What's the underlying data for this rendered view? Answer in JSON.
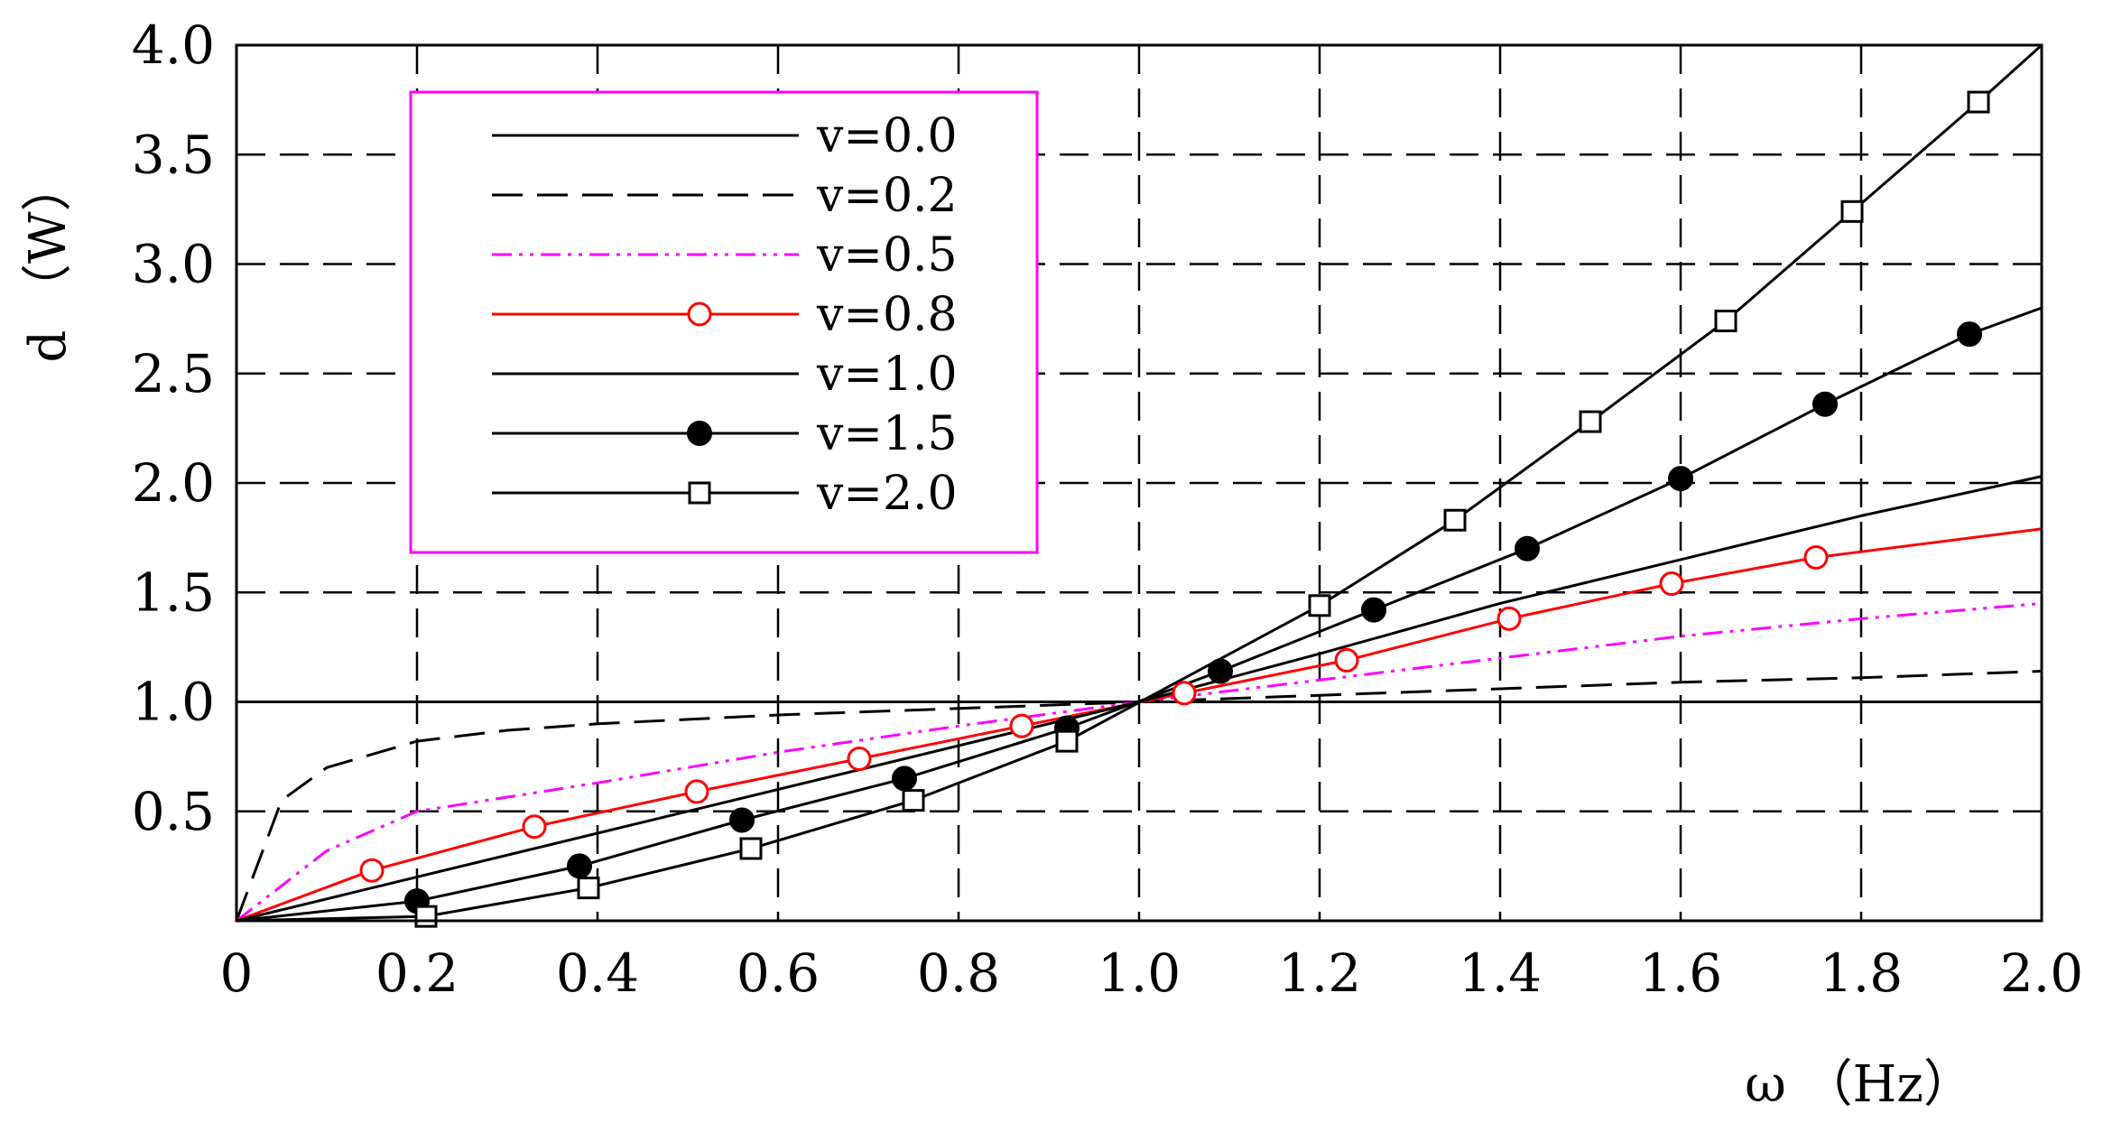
{
  "chart_data": {
    "type": "line",
    "xlabel": "ω （Hz）",
    "ylabel": "d （W）",
    "xlim": [
      0,
      2.0
    ],
    "ylim": [
      0,
      4.0
    ],
    "x_ticks": [
      "0",
      "0.2",
      "0.4",
      "0.6",
      "0.8",
      "1.0",
      "1.2",
      "1.4",
      "1.6",
      "1.8",
      "2.0"
    ],
    "y_ticks": [
      "0.5",
      "1.0",
      "1.5",
      "2.0",
      "2.5",
      "3.0",
      "3.5",
      "4.0"
    ],
    "grid": true,
    "legend_position": "top-left",
    "reference_line": {
      "y": 1.0,
      "color": "#ff0000"
    },
    "series": [
      {
        "name": "v=0.0",
        "color": "#000000",
        "style": "solid",
        "marker": "none",
        "x": [
          0,
          2.0
        ],
        "y": [
          1.0,
          1.0
        ]
      },
      {
        "name": "v=0.2",
        "color": "#000000",
        "style": "dash",
        "marker": "none",
        "x": [
          0,
          0.05,
          0.1,
          0.2,
          0.3,
          0.4,
          0.6,
          0.8,
          1.0,
          1.2,
          1.4,
          1.6,
          1.8,
          2.0
        ],
        "y": [
          0,
          0.55,
          0.7,
          0.82,
          0.87,
          0.9,
          0.94,
          0.97,
          1.0,
          1.03,
          1.06,
          1.09,
          1.11,
          1.14
        ]
      },
      {
        "name": "v=0.5",
        "color": "#ff00ff",
        "style": "dashdot",
        "marker": "none",
        "x": [
          0,
          0.1,
          0.2,
          0.4,
          0.6,
          0.8,
          1.0,
          1.2,
          1.4,
          1.6,
          1.8,
          2.0
        ],
        "y": [
          0,
          0.32,
          0.5,
          0.63,
          0.77,
          0.89,
          1.0,
          1.1,
          1.2,
          1.3,
          1.38,
          1.45
        ]
      },
      {
        "name": "v=0.8",
        "color": "#ff0000",
        "style": "solid",
        "marker": "open-circle",
        "x": [
          0,
          0.15,
          0.33,
          0.51,
          0.69,
          0.87,
          1.05,
          1.23,
          1.41,
          1.59,
          1.75,
          2.0
        ],
        "y": [
          0,
          0.23,
          0.43,
          0.59,
          0.74,
          0.89,
          1.04,
          1.19,
          1.38,
          1.54,
          1.66,
          1.79
        ]
      },
      {
        "name": "v=1.0",
        "color": "#000000",
        "style": "solid",
        "marker": "none",
        "x": [
          0,
          0.4,
          0.8,
          1.0,
          1.2,
          1.4,
          1.6,
          1.8,
          2.0
        ],
        "y": [
          0,
          0.4,
          0.8,
          1.0,
          1.22,
          1.45,
          1.65,
          1.85,
          2.03
        ]
      },
      {
        "name": "v=1.5",
        "color": "#000000",
        "style": "solid",
        "marker": "filled-circle",
        "x": [
          0,
          0.2,
          0.38,
          0.56,
          0.74,
          0.92,
          1.09,
          1.26,
          1.43,
          1.6,
          1.76,
          1.92,
          2.0
        ],
        "y": [
          0,
          0.09,
          0.25,
          0.46,
          0.65,
          0.88,
          1.14,
          1.42,
          1.7,
          2.02,
          2.36,
          2.68,
          2.8
        ]
      },
      {
        "name": "v=2.0",
        "color": "#000000",
        "style": "solid",
        "marker": "open-square",
        "x": [
          0,
          0.21,
          0.39,
          0.57,
          0.75,
          0.92,
          1.2,
          1.35,
          1.5,
          1.65,
          1.79,
          1.93,
          2.0
        ],
        "y": [
          0,
          0.02,
          0.15,
          0.33,
          0.55,
          0.82,
          1.44,
          1.83,
          2.28,
          2.74,
          3.24,
          3.74,
          4.0
        ]
      }
    ]
  }
}
